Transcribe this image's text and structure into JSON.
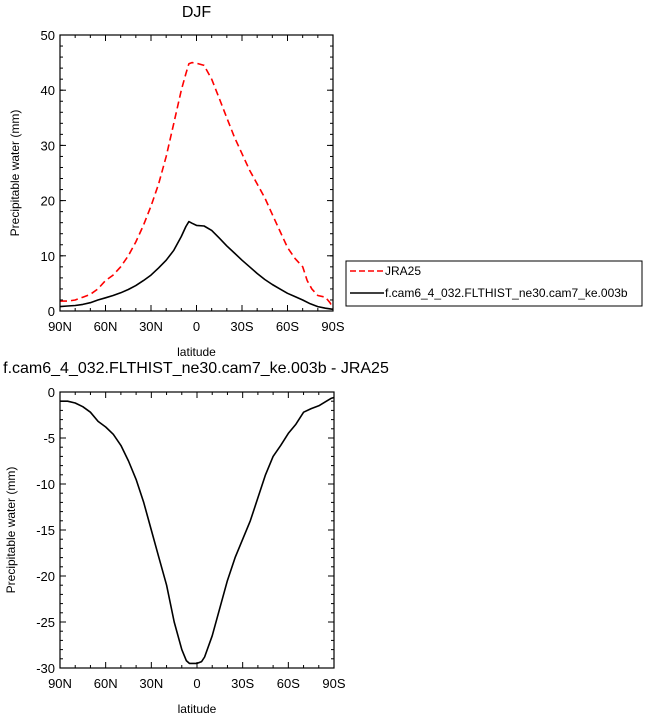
{
  "chart_data": [
    {
      "type": "line",
      "title": "DJF",
      "xlabel": "latitude",
      "ylabel": "Precipitable water (mm)",
      "xlim": [
        90,
        -90
      ],
      "ylim": [
        0,
        50
      ],
      "x_ticks": [
        90,
        60,
        30,
        0,
        -30,
        -60,
        -90
      ],
      "x_tick_labels": [
        "90N",
        "60N",
        "30N",
        "0",
        "30S",
        "60S",
        "90S"
      ],
      "y_ticks": [
        0,
        10,
        20,
        30,
        40,
        50
      ],
      "y_tick_labels": [
        "0",
        "10",
        "20",
        "30",
        "40",
        "50"
      ],
      "legend_position": "right",
      "series": [
        {
          "name": "JRA25",
          "color": "#ff0000",
          "dashed": true,
          "x": [
            90,
            85,
            80,
            75,
            70,
            65,
            60,
            55,
            50,
            45,
            40,
            35,
            30,
            25,
            20,
            15,
            10,
            7,
            5,
            3,
            0,
            -5,
            -10,
            -15,
            -20,
            -25,
            -30,
            -35,
            -40,
            -45,
            -50,
            -55,
            -60,
            -65,
            -70,
            -73,
            -76,
            -80,
            -85,
            -88,
            -90
          ],
          "y": [
            1.8,
            1.8,
            2.0,
            2.5,
            3.0,
            4.0,
            5.5,
            6.5,
            8.0,
            10.0,
            12.5,
            15.5,
            19.0,
            23.0,
            28.0,
            34.0,
            40.0,
            43.0,
            44.8,
            45.0,
            44.9,
            44.5,
            42.0,
            38.5,
            35.0,
            31.5,
            28.5,
            25.5,
            23.0,
            20.5,
            17.5,
            14.5,
            11.5,
            9.5,
            8.0,
            5.5,
            4.0,
            2.8,
            2.5,
            1.5,
            0.5
          ]
        },
        {
          "name": "f.cam6_4_032.FLTHIST_ne30.cam7_ke.003b",
          "color": "#000000",
          "dashed": false,
          "x": [
            90,
            85,
            80,
            75,
            70,
            65,
            60,
            55,
            50,
            45,
            40,
            35,
            30,
            25,
            20,
            15,
            10,
            7,
            5,
            3,
            0,
            -5,
            -10,
            -15,
            -20,
            -25,
            -30,
            -35,
            -40,
            -45,
            -50,
            -55,
            -60,
            -65,
            -70,
            -75,
            -80,
            -85,
            -90
          ],
          "y": [
            0.8,
            0.9,
            1.0,
            1.2,
            1.5,
            2.0,
            2.4,
            2.8,
            3.3,
            3.9,
            4.6,
            5.5,
            6.5,
            7.8,
            9.2,
            11.0,
            13.5,
            15.3,
            16.2,
            15.9,
            15.5,
            15.4,
            14.6,
            13.2,
            11.8,
            10.5,
            9.2,
            8.0,
            6.8,
            5.7,
            4.8,
            4.0,
            3.2,
            2.6,
            2.0,
            1.3,
            0.8,
            0.5,
            0.3
          ]
        }
      ]
    },
    {
      "type": "line",
      "title": "f.cam6_4_032.FLTHIST_ne30.cam7_ke.003b - JRA25",
      "xlabel": "latitude",
      "ylabel": "Precipitable water (mm)",
      "xlim": [
        90,
        -90
      ],
      "ylim": [
        -30,
        0
      ],
      "x_ticks": [
        90,
        60,
        30,
        0,
        -30,
        -60,
        -90
      ],
      "x_tick_labels": [
        "90N",
        "60N",
        "30N",
        "0",
        "30S",
        "60S",
        "90S"
      ],
      "y_ticks": [
        0,
        -5,
        -10,
        -15,
        -20,
        -25,
        -30
      ],
      "y_tick_labels": [
        "0",
        "-5",
        "-10",
        "-15",
        "-20",
        "-25",
        "-30"
      ],
      "series": [
        {
          "color": "#000000",
          "dashed": false,
          "x": [
            90,
            85,
            80,
            75,
            70,
            65,
            60,
            55,
            50,
            45,
            40,
            35,
            30,
            25,
            20,
            15,
            10,
            7,
            5,
            3,
            0,
            -3,
            -5,
            -10,
            -15,
            -20,
            -25,
            -30,
            -35,
            -40,
            -45,
            -50,
            -55,
            -60,
            -65,
            -70,
            -75,
            -80,
            -85,
            -88,
            -90
          ],
          "y": [
            -1.0,
            -1.0,
            -1.2,
            -1.6,
            -2.2,
            -3.2,
            -3.8,
            -4.6,
            -5.8,
            -7.5,
            -9.5,
            -12.0,
            -15.0,
            -18.0,
            -21.0,
            -25.0,
            -28.0,
            -29.2,
            -29.5,
            -29.5,
            -29.5,
            -29.3,
            -28.8,
            -26.5,
            -23.5,
            -20.5,
            -18.0,
            -16.0,
            -14.0,
            -11.5,
            -9.0,
            -7.0,
            -5.8,
            -4.5,
            -3.5,
            -2.2,
            -1.8,
            -1.5,
            -1.0,
            -0.7,
            -0.6
          ]
        }
      ]
    }
  ]
}
